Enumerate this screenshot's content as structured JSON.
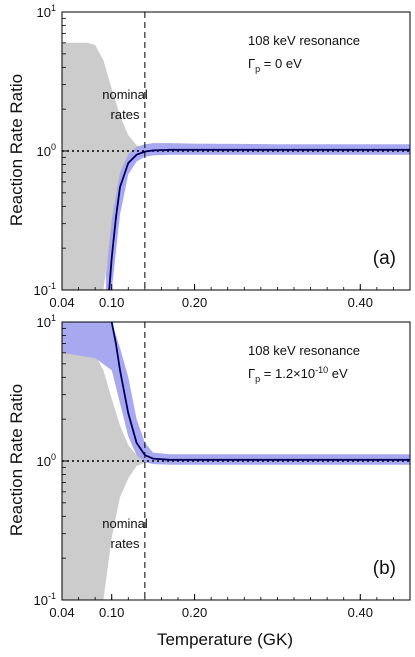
{
  "ylabel": "Reaction Rate Ratio",
  "xlabel": "Temperature (GK)",
  "colors": {
    "nominal_band": "#cccccc",
    "band": "#a8a8f0",
    "line": "#00005a"
  },
  "chart_data": [
    {
      "type": "area",
      "panel_label": "(a)",
      "annotation_line1": "108 keV resonance",
      "annotation_line2": "Γ",
      "annotation_sub": "p",
      "annotation_rest": " = 0 eV",
      "band_label_1": "nominal",
      "band_label_2": "rates",
      "xlim": [
        0.04,
        0.46
      ],
      "ylim": [
        0.1,
        10
      ],
      "yscale": "log",
      "xticks": [
        0.04,
        0.1,
        0.2,
        0.4
      ],
      "xtick_labels": [
        "0.04",
        "0.10",
        "0.20",
        "0.40"
      ],
      "ytick_labels": [
        "10",
        "10",
        "10"
      ],
      "ytick_exps": [
        "1",
        "0",
        "-1"
      ],
      "vline_x": 0.14,
      "hline_y": 1.0,
      "nominal_band": {
        "x": [
          0.04,
          0.07,
          0.08,
          0.09,
          0.1,
          0.11,
          0.12,
          0.13,
          0.14,
          0.46
        ],
        "upper": [
          6.0,
          6.0,
          5.8,
          4.5,
          2.8,
          1.8,
          1.3,
          1.1,
          1.04,
          1.04
        ],
        "lower": [
          0.1,
          0.1,
          0.1,
          0.1,
          0.28,
          0.55,
          0.75,
          0.92,
          0.97,
          0.97
        ]
      },
      "band": {
        "x": [
          0.093,
          0.1,
          0.11,
          0.12,
          0.13,
          0.14,
          0.15,
          0.17,
          0.2,
          0.3,
          0.46
        ],
        "upper": [
          0.13,
          0.32,
          0.7,
          0.95,
          1.07,
          1.12,
          1.14,
          1.14,
          1.13,
          1.12,
          1.12
        ],
        "lower": [
          0.1,
          0.1,
          0.35,
          0.68,
          0.84,
          0.91,
          0.93,
          0.94,
          0.94,
          0.94,
          0.94
        ]
      },
      "median": {
        "x": [
          0.097,
          0.1,
          0.105,
          0.11,
          0.12,
          0.13,
          0.14,
          0.15,
          0.17,
          0.2,
          0.3,
          0.46
        ],
        "y": [
          0.1,
          0.17,
          0.33,
          0.55,
          0.82,
          0.94,
          0.99,
          1.01,
          1.02,
          1.02,
          1.02,
          1.02
        ]
      }
    },
    {
      "type": "area",
      "panel_label": "(b)",
      "annotation_line1": "108 keV resonance",
      "annotation_line2": "Γ",
      "annotation_sub": "p",
      "annotation_rest": " = 1.2×10",
      "annotation_exp": "-10",
      "annotation_tail": " eV",
      "band_label_1": "nominal",
      "band_label_2": "rates",
      "xlim": [
        0.04,
        0.46
      ],
      "ylim": [
        0.1,
        10
      ],
      "yscale": "log",
      "xticks": [
        0.04,
        0.1,
        0.2,
        0.4
      ],
      "xtick_labels": [
        "0.04",
        "0.10",
        "0.20",
        "0.40"
      ],
      "ytick_labels": [
        "10",
        "10",
        "10"
      ],
      "ytick_exps": [
        "1",
        "0",
        "-1"
      ],
      "vline_x": 0.14,
      "hline_y": 1.0,
      "nominal_band": {
        "x": [
          0.04,
          0.07,
          0.08,
          0.09,
          0.1,
          0.11,
          0.12,
          0.13,
          0.14,
          0.46
        ],
        "upper": [
          6.0,
          6.0,
          5.8,
          4.5,
          2.8,
          1.8,
          1.3,
          1.1,
          1.04,
          1.04
        ],
        "lower": [
          0.1,
          0.1,
          0.1,
          0.1,
          0.28,
          0.55,
          0.75,
          0.92,
          0.97,
          0.97
        ]
      },
      "band": {
        "x": [
          0.04,
          0.08,
          0.1,
          0.11,
          0.12,
          0.13,
          0.14,
          0.15,
          0.17,
          0.2,
          0.3,
          0.46
        ],
        "upper": [
          10,
          10,
          10,
          6.5,
          4.0,
          2.0,
          1.35,
          1.15,
          1.12,
          1.12,
          1.12,
          1.12
        ],
        "lower": [
          6.0,
          5.5,
          4.5,
          2.6,
          1.5,
          1.1,
          0.98,
          0.95,
          0.94,
          0.94,
          0.94,
          0.94
        ]
      },
      "median": {
        "x": [
          0.1,
          0.105,
          0.11,
          0.12,
          0.13,
          0.14,
          0.15,
          0.17,
          0.2,
          0.3,
          0.46
        ],
        "y": [
          10,
          7.0,
          4.5,
          2.2,
          1.35,
          1.1,
          1.04,
          1.02,
          1.02,
          1.02,
          1.02
        ]
      }
    }
  ]
}
